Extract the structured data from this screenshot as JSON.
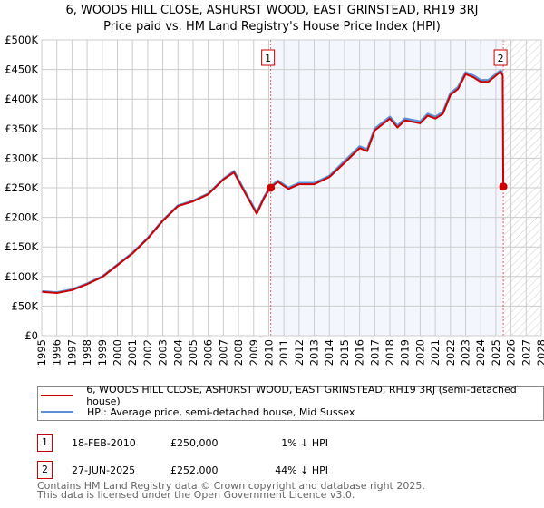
{
  "title": "6, WOODS HILL CLOSE, ASHURST WOOD, EAST GRINSTEAD, RH19 3RJ",
  "subtitle": "Price paid vs. HM Land Registry's House Price Index (HPI)",
  "chart_data": {
    "type": "line",
    "xlim": [
      1995,
      2028
    ],
    "ylim": [
      0,
      500000
    ],
    "x_ticks": [
      "1995",
      "1996",
      "1997",
      "1998",
      "1999",
      "2000",
      "2001",
      "2002",
      "2003",
      "2004",
      "2005",
      "2006",
      "2007",
      "2008",
      "2009",
      "2010",
      "2011",
      "2012",
      "2013",
      "2014",
      "2015",
      "2016",
      "2017",
      "2018",
      "2019",
      "2020",
      "2021",
      "2022",
      "2023",
      "2024",
      "2025",
      "2026",
      "2027",
      "2028"
    ],
    "y_ticks": [
      "£0",
      "£50K",
      "£100K",
      "£150K",
      "£200K",
      "£250K",
      "£300K",
      "£350K",
      "£400K",
      "£450K",
      "£500K"
    ],
    "series": [
      {
        "name": "HPI: Average price, semi-detached house, Mid Sussex",
        "color": "#5b8fd6",
        "x": [
          1995,
          1996,
          1997,
          1998,
          1999,
          2000,
          2001,
          2002,
          2003,
          2004,
          2005,
          2006,
          2007,
          2007.7,
          2008.5,
          2009.2,
          2009.7,
          2010.1,
          2010.6,
          2011.3,
          2012,
          2013,
          2014,
          2015,
          2016,
          2016.5,
          2017,
          2018,
          2018.5,
          2019,
          2020,
          2020.5,
          2021,
          2021.5,
          2022,
          2022.5,
          2023,
          2023.5,
          2024,
          2024.5,
          2025.3,
          2025.45
        ],
        "y": [
          75000,
          73000,
          78000,
          88000,
          100000,
          120000,
          140000,
          165000,
          195000,
          220000,
          228000,
          240000,
          265000,
          278000,
          240000,
          208000,
          235000,
          252000,
          262000,
          250000,
          258000,
          258000,
          270000,
          295000,
          320000,
          315000,
          350000,
          370000,
          355000,
          367000,
          362000,
          375000,
          370000,
          378000,
          410000,
          420000,
          445000,
          440000,
          432000,
          432000,
          448000,
          445000
        ]
      },
      {
        "name": "6, WOODS HILL CLOSE, ASHURST WOOD, EAST GRINSTEAD, RH19 3RJ (semi-detached house)",
        "color": "#cc0000",
        "x": [
          1995,
          1996,
          1997,
          1998,
          1999,
          2000,
          2001,
          2002,
          2003,
          2004,
          2005,
          2006,
          2007,
          2007.7,
          2008.5,
          2009.2,
          2009.7,
          2010.1,
          2010.6,
          2011.3,
          2012,
          2013,
          2014,
          2015,
          2016,
          2016.5,
          2017,
          2018,
          2018.5,
          2019,
          2020,
          2020.5,
          2021,
          2021.5,
          2022,
          2022.5,
          2023,
          2023.5,
          2024,
          2024.5,
          2025.3,
          2025.45,
          2025.49
        ],
        "y": [
          74000,
          72000,
          77000,
          87000,
          99000,
          119000,
          139000,
          164000,
          194000,
          219000,
          227000,
          239000,
          264000,
          276000,
          238000,
          206000,
          233000,
          250000,
          260000,
          248000,
          256000,
          256000,
          268000,
          292000,
          317000,
          312000,
          347000,
          367000,
          352000,
          364000,
          359000,
          372000,
          367000,
          375000,
          407000,
          417000,
          442000,
          437000,
          429000,
          429000,
          446000,
          440000,
          252000
        ]
      }
    ],
    "sales": [
      {
        "label": "1",
        "x": 2010.13,
        "y": 250000
      },
      {
        "label": "2",
        "x": 2025.49,
        "y": 252000
      }
    ],
    "shaded_from": 2010.13,
    "hatched_from": 2025.49
  },
  "legend": {
    "red": "6, WOODS HILL CLOSE, ASHURST WOOD, EAST GRINSTEAD, RH19 3RJ (semi-detached house)",
    "blue": "HPI: Average price, semi-detached house, Mid Sussex"
  },
  "transactions": [
    {
      "num": "1",
      "date": "18-FEB-2010",
      "price": "£250,000",
      "hpi": "1% ↓ HPI"
    },
    {
      "num": "2",
      "date": "27-JUN-2025",
      "price": "£252,000",
      "hpi": "44% ↓ HPI"
    }
  ],
  "footer": [
    "Contains HM Land Registry data © Crown copyright and database right 2025.",
    "This data is licensed under the Open Government Licence v3.0."
  ]
}
